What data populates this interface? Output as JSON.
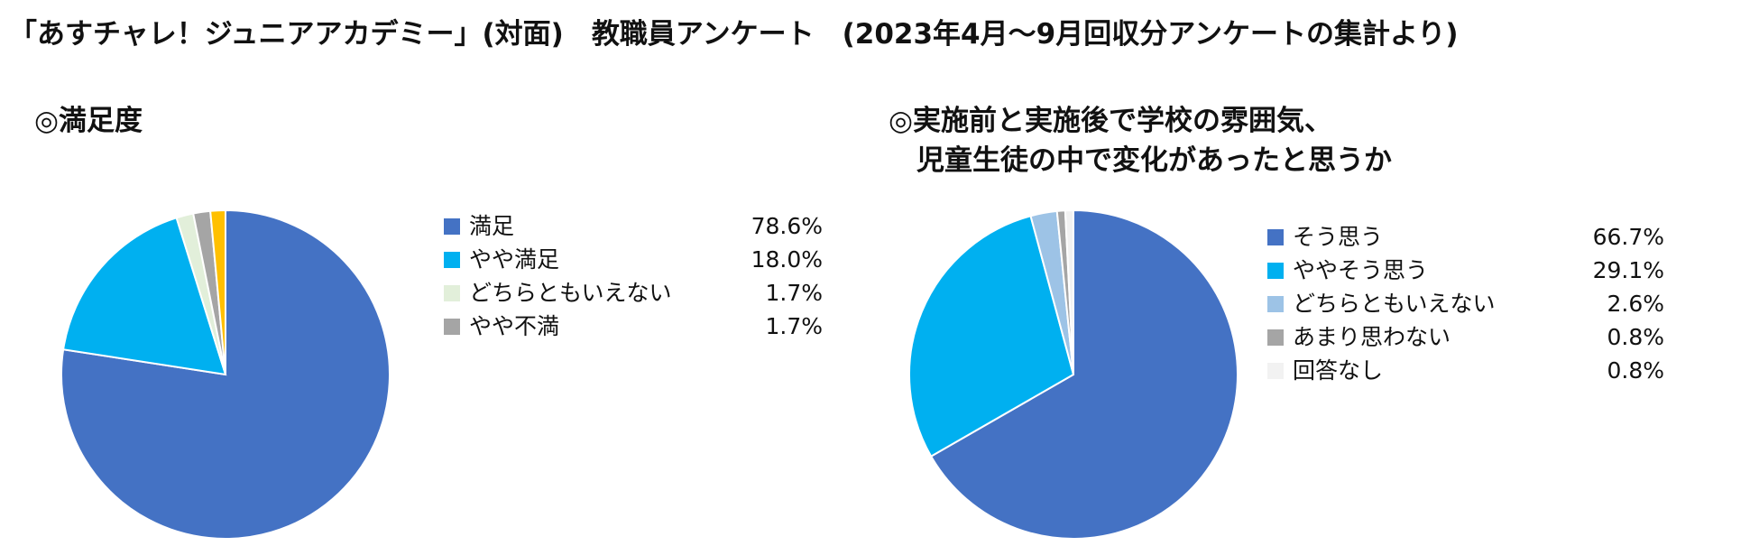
{
  "title": "「あすチャレ！ジュニアアカデミー」(対面)　教職員アンケート　(2023年4月～9月回収分アンケートの集計より)",
  "chart_data": [
    {
      "type": "pie",
      "title": "◎満足度",
      "title_lines": [
        "◎満足度"
      ],
      "start_angle_deg": 0,
      "direction": "clockwise",
      "legend_position": "right",
      "slices": [
        {
          "label": "満足",
          "value": 78.6,
          "value_label": "78.6%",
          "color": "#4472C4"
        },
        {
          "label": "やや満足",
          "value": 18.0,
          "value_label": "18.0%",
          "color": "#00B0F0"
        },
        {
          "label": "どちらともいえない",
          "value": 1.7,
          "value_label": "1.7%",
          "color": "#E2EFDA"
        },
        {
          "label": "やや不満",
          "value": 1.7,
          "value_label": "1.7%",
          "color": "#A5A5A5"
        }
      ],
      "unlabeled_slices": [
        {
          "value": 1.5,
          "color": "#FFC000"
        }
      ]
    },
    {
      "type": "pie",
      "title": "◎実施前と実施後で学校の雰囲気、児童生徒の中で変化があったと思うか",
      "title_lines": [
        "◎実施前と実施後で学校の雰囲気、",
        "　児童生徒の中で変化があったと思うか"
      ],
      "start_angle_deg": 0,
      "direction": "clockwise",
      "legend_position": "right",
      "slices": [
        {
          "label": "そう思う",
          "value": 66.7,
          "value_label": "66.7%",
          "color": "#4472C4"
        },
        {
          "label": "ややそう思う",
          "value": 29.1,
          "value_label": "29.1%",
          "color": "#00B0F0"
        },
        {
          "label": "どちらともいえない",
          "value": 2.6,
          "value_label": "2.6%",
          "color": "#9DC3E6"
        },
        {
          "label": "あまり思わない",
          "value": 0.8,
          "value_label": "0.8%",
          "color": "#A5A5A5"
        },
        {
          "label": "回答なし",
          "value": 0.8,
          "value_label": "0.8%",
          "color": "#F2F2F2"
        }
      ]
    }
  ]
}
